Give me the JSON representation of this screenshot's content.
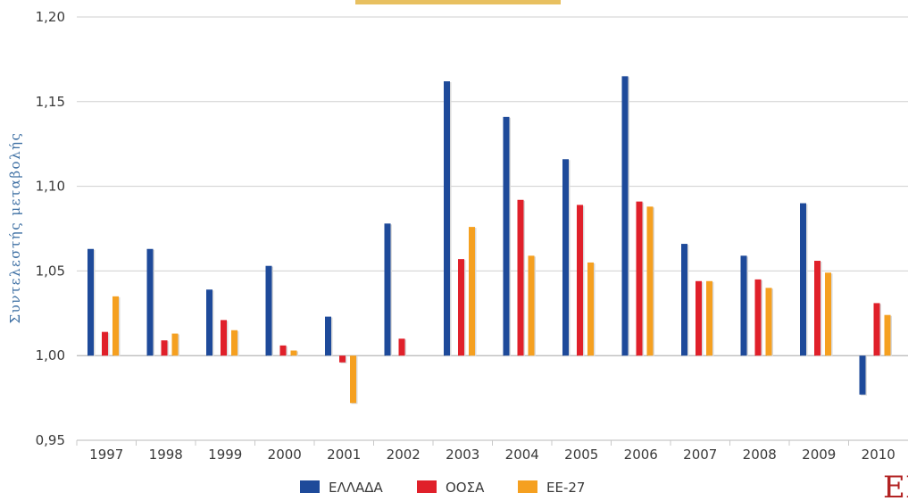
{
  "chart_data": {
    "type": "bar",
    "title": "",
    "xlabel": "",
    "ylabel": "Συντελεστής μεταβολής",
    "ylim": [
      0.95,
      1.2
    ],
    "yticks": [
      "0,95",
      "1,00",
      "1,05",
      "1,10",
      "1,15",
      "1,20"
    ],
    "baseline": 1.0,
    "grid": true,
    "legend_position": "bottom",
    "categories": [
      "1997",
      "1998",
      "1999",
      "2000",
      "2001",
      "2002",
      "2003",
      "2004",
      "2005",
      "2006",
      "2007",
      "2008",
      "2009",
      "2010"
    ],
    "series": [
      {
        "name": "ΕΛΛΑΔΑ",
        "color": "#1e4a9a",
        "values": [
          1.063,
          1.063,
          1.039,
          1.053,
          1.023,
          1.078,
          1.162,
          1.141,
          1.116,
          1.165,
          1.066,
          1.059,
          1.09,
          0.977
        ]
      },
      {
        "name": "ΟΟΣΑ",
        "color": "#e0202a",
        "values": [
          1.014,
          1.009,
          1.021,
          1.006,
          0.996,
          1.01,
          1.057,
          1.092,
          1.089,
          1.091,
          1.044,
          1.045,
          1.056,
          1.031
        ]
      },
      {
        "name": "ΕΕ-27",
        "color": "#f5a020",
        "values": [
          1.035,
          1.013,
          1.015,
          1.003,
          0.972,
          null,
          1.076,
          1.059,
          1.055,
          1.088,
          1.044,
          1.04,
          1.049,
          1.024
        ]
      }
    ]
  },
  "logo": {
    "text": "EK"
  }
}
